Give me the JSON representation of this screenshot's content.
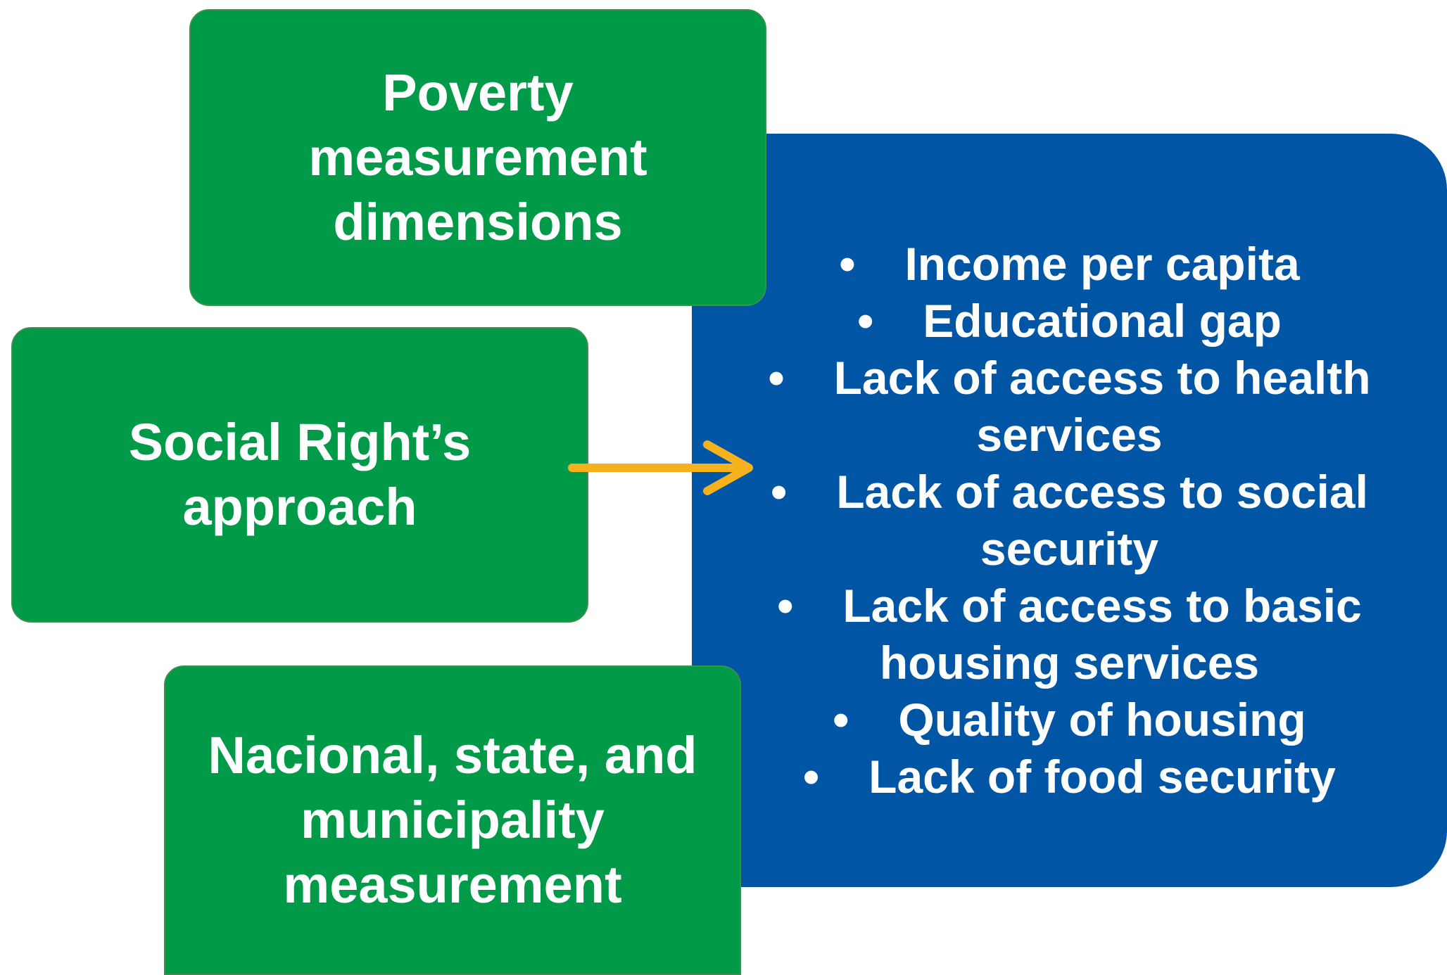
{
  "nodes": [
    {
      "label": "Poverty measurement dimensions"
    },
    {
      "label": "Social Right’s approach"
    },
    {
      "label": "Nacional, state, and municipality measurement"
    }
  ],
  "list": {
    "items": [
      "Income per capita",
      "Educational gap",
      "Lack of access to health services",
      "Lack of access to social security",
      "Lack of access to basic housing services",
      "Quality of housing",
      "Lack of food security"
    ]
  }
}
